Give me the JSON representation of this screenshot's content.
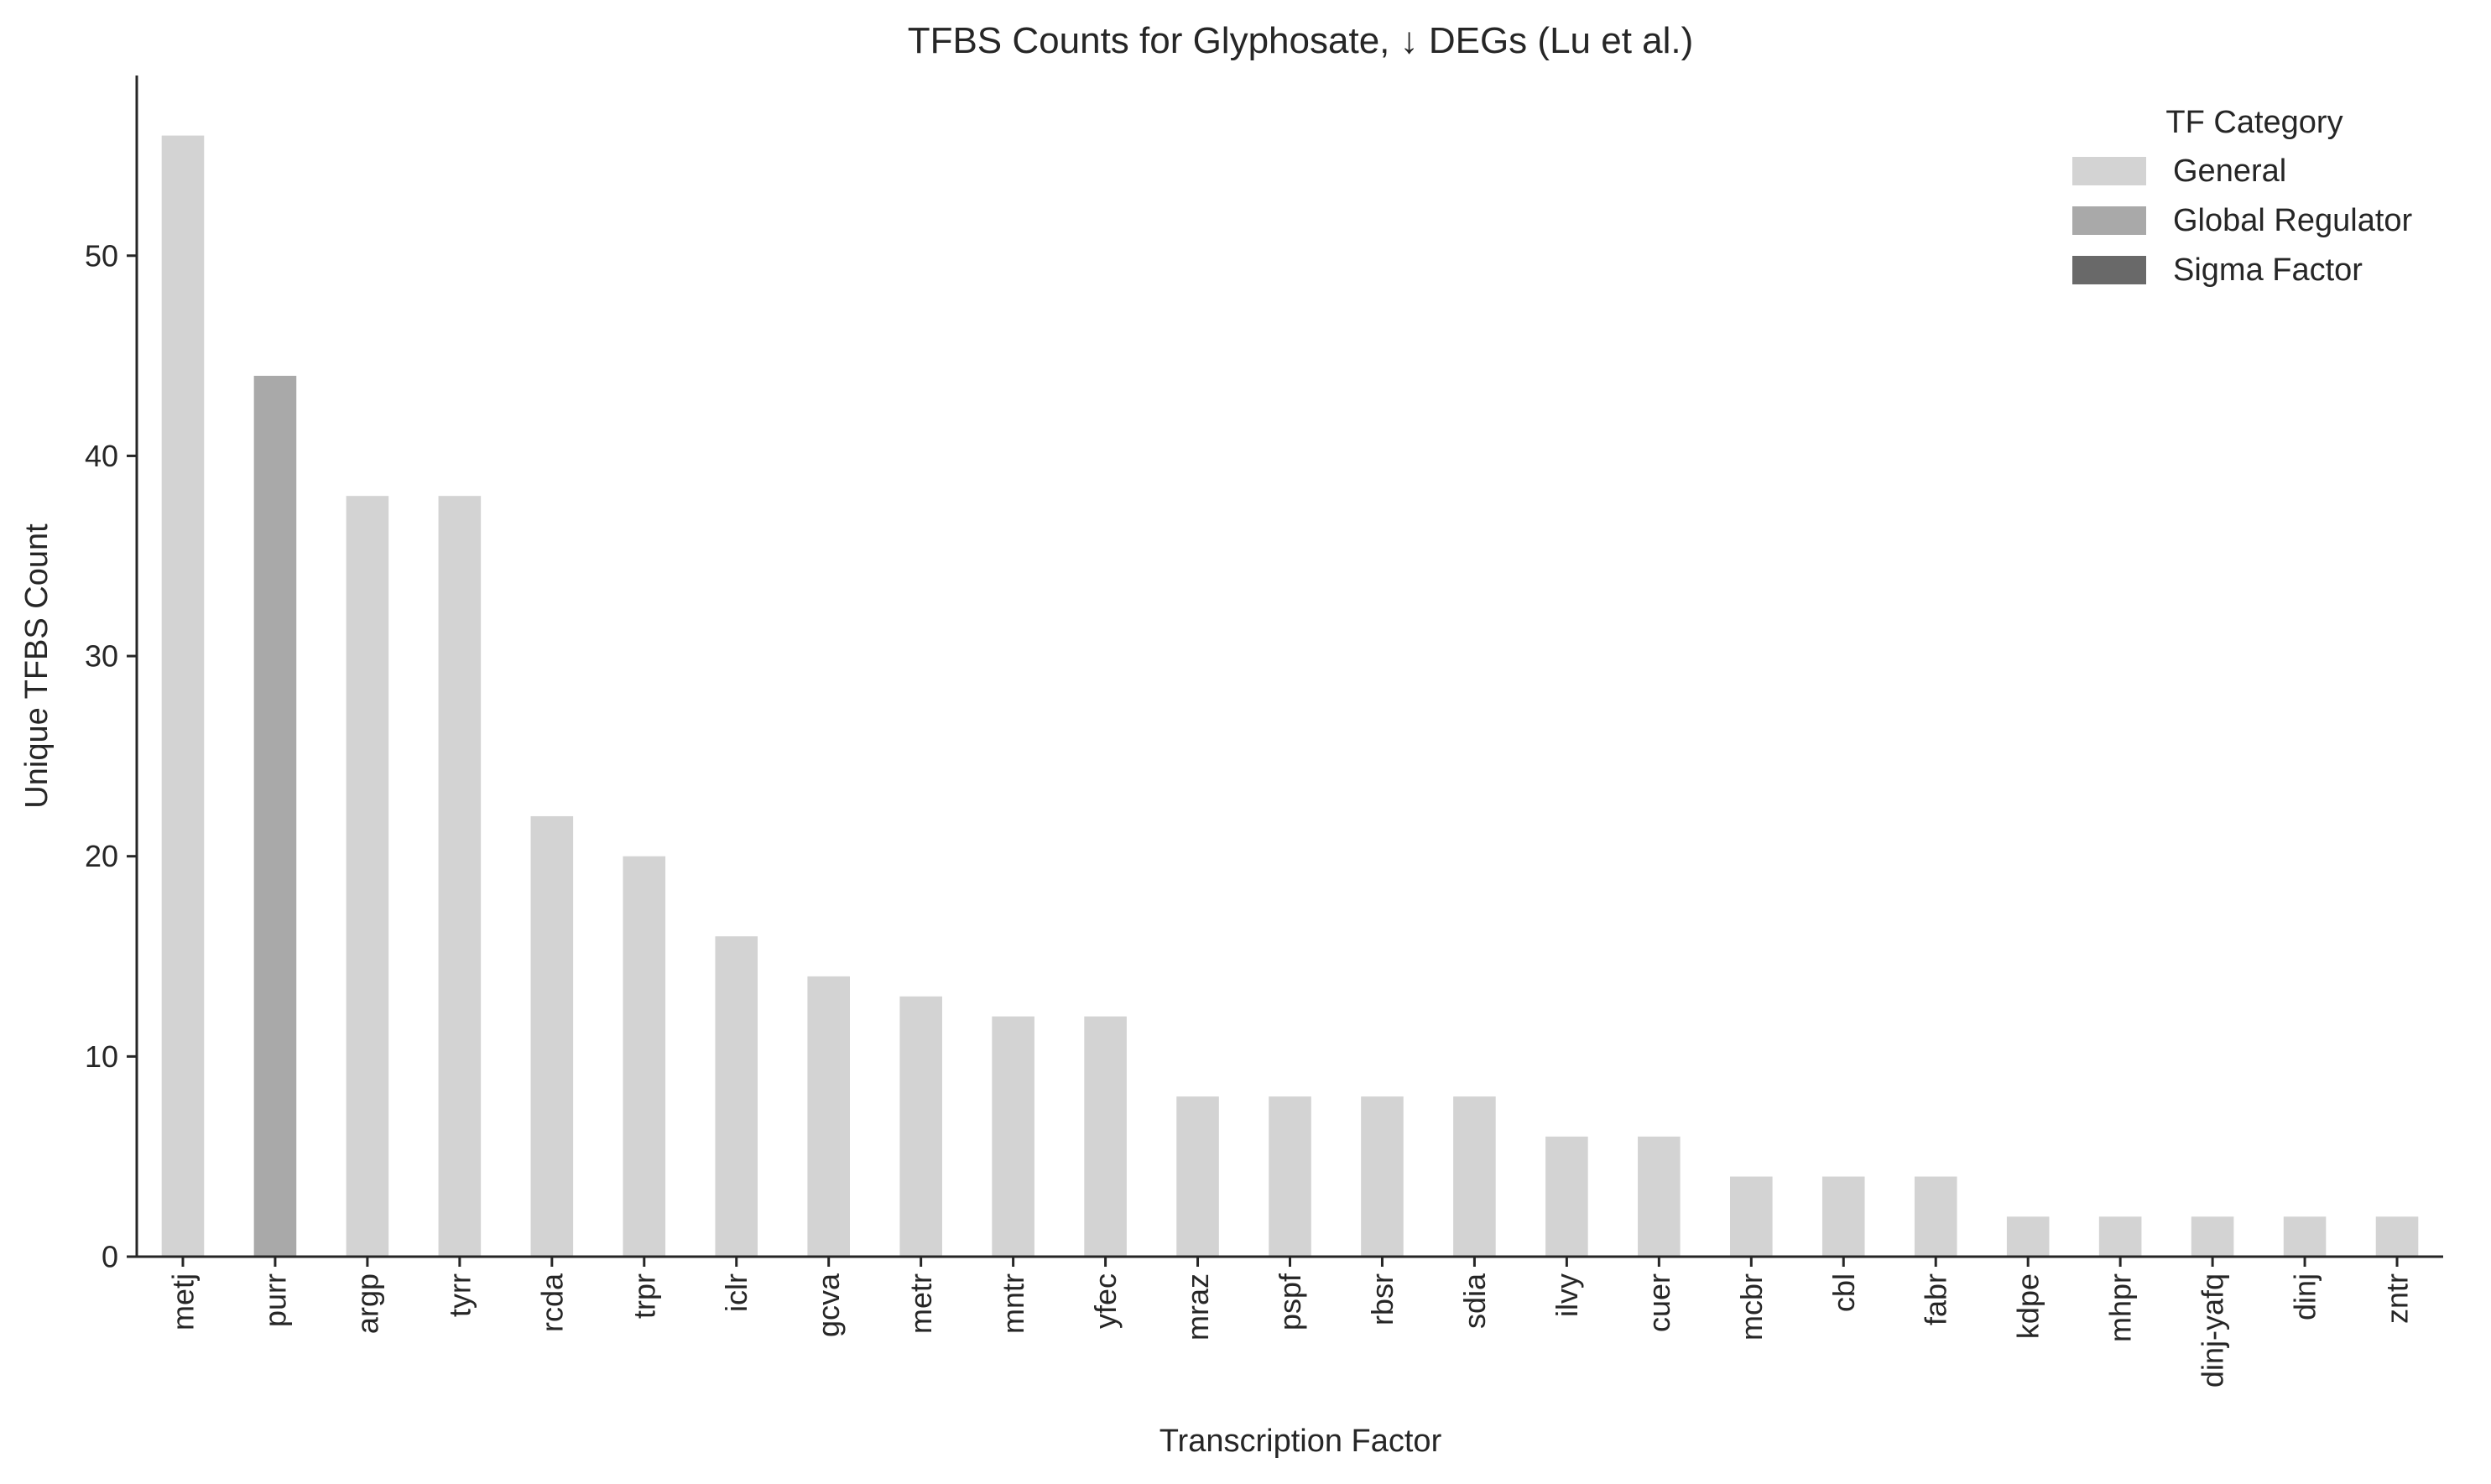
{
  "chart_data": {
    "type": "bar",
    "title": "TFBS Counts for Glyphosate, ↓ DEGs (Lu et al.)",
    "xlabel": "Transcription Factor",
    "ylabel": "Unique TFBS Count",
    "ylim": [
      0,
      59
    ],
    "yticks": [
      0,
      10,
      20,
      30,
      40,
      50
    ],
    "grid": false,
    "legend": {
      "title": "TF Category",
      "placement": "top-right",
      "entries": [
        {
          "label": "General",
          "color": "#d3d3d3"
        },
        {
          "label": "Global Regulator",
          "color": "#a9a9a9"
        },
        {
          "label": "Sigma Factor",
          "color": "#696969"
        }
      ]
    },
    "categories": [
      "metj",
      "purr",
      "argp",
      "tyrr",
      "rcda",
      "trpr",
      "iclr",
      "gcva",
      "metr",
      "mntr",
      "yfec",
      "mraz",
      "pspf",
      "rbsr",
      "sdia",
      "ilvy",
      "cuer",
      "mcbr",
      "cbl",
      "fabr",
      "kdpe",
      "mhpr",
      "dinj-yafq",
      "dinj",
      "zntr"
    ],
    "values": [
      56,
      44,
      38,
      38,
      22,
      20,
      16,
      14,
      13,
      12,
      12,
      8,
      8,
      8,
      8,
      6,
      6,
      4,
      4,
      4,
      2,
      2,
      2,
      2,
      2
    ],
    "bar_categories": [
      "General",
      "Global Regulator",
      "General",
      "General",
      "General",
      "General",
      "General",
      "General",
      "General",
      "General",
      "General",
      "General",
      "General",
      "General",
      "General",
      "General",
      "General",
      "General",
      "General",
      "General",
      "General",
      "General",
      "General",
      "General",
      "General"
    ]
  }
}
